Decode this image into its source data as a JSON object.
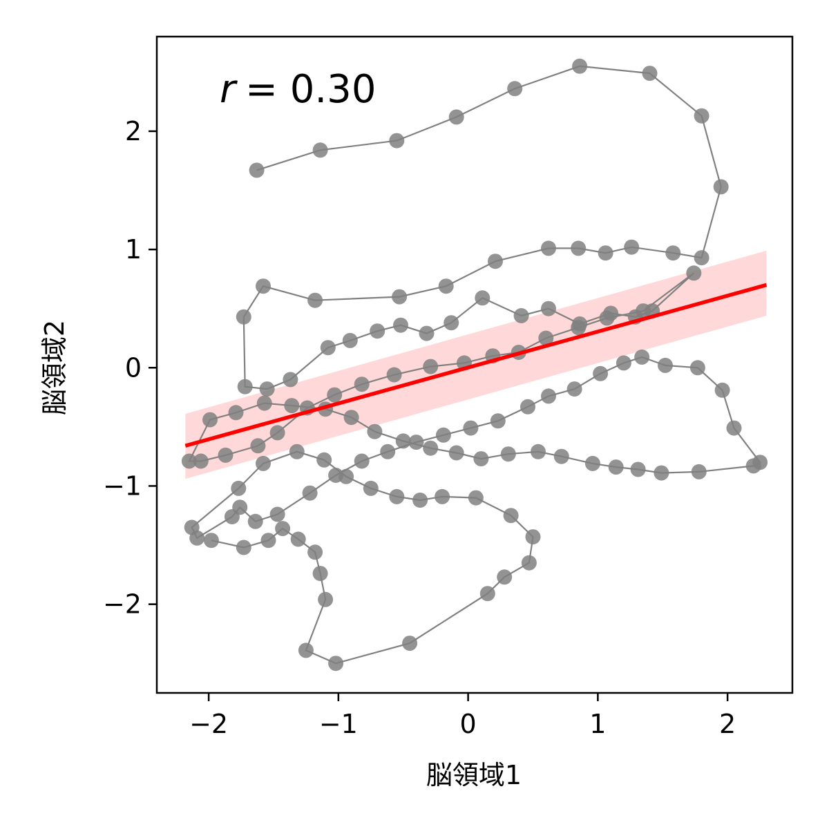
{
  "chart_data": {
    "type": "scatter",
    "xlabel": "脳領域1",
    "ylabel": "脳領域2",
    "xlim": [
      -2.4,
      2.5
    ],
    "ylim": [
      -2.75,
      2.8
    ],
    "xticks": [
      -2,
      -1,
      0,
      1,
      2
    ],
    "yticks": [
      -2,
      -1,
      0,
      1,
      2
    ],
    "grid": false,
    "annotation": {
      "symbol": "r",
      "value": "= 0.30"
    },
    "colors": {
      "points": "#808080",
      "path": "#808080",
      "fit": "#ff0000",
      "band": "#ffcccc"
    },
    "series": [
      {
        "style": "markers-connected",
        "points": [
          [
            -1.63,
            1.67
          ],
          [
            -1.14,
            1.84
          ],
          [
            -0.55,
            1.92
          ],
          [
            -0.09,
            2.12
          ],
          [
            0.36,
            2.36
          ],
          [
            0.86,
            2.55
          ],
          [
            1.4,
            2.49
          ],
          [
            1.8,
            2.13
          ],
          [
            1.95,
            1.53
          ],
          [
            1.8,
            0.93
          ],
          [
            1.58,
            0.97
          ],
          [
            1.26,
            1.02
          ],
          [
            1.06,
            0.97
          ],
          [
            0.85,
            1.01
          ],
          [
            0.62,
            1.01
          ],
          [
            0.21,
            0.9
          ],
          [
            -0.17,
            0.69
          ],
          [
            -0.53,
            0.6
          ],
          [
            -1.18,
            0.57
          ],
          [
            -1.58,
            0.69
          ],
          [
            -1.73,
            0.43
          ],
          [
            -1.72,
            -0.16
          ],
          [
            -1.55,
            -0.18
          ],
          [
            -1.37,
            -0.1
          ],
          [
            -1.08,
            0.17
          ],
          [
            -0.91,
            0.23
          ],
          [
            -0.7,
            0.31
          ],
          [
            -0.52,
            0.36
          ],
          [
            -0.32,
            0.29
          ],
          [
            -0.13,
            0.38
          ],
          [
            0.11,
            0.59
          ],
          [
            0.41,
            0.44
          ],
          [
            0.62,
            0.5
          ],
          [
            0.86,
            0.37
          ],
          [
            1.1,
            0.46
          ],
          [
            1.29,
            0.43
          ],
          [
            1.42,
            0.48
          ],
          [
            1.74,
            0.8
          ],
          [
            1.35,
            0.48
          ],
          [
            1.07,
            0.42
          ],
          [
            0.85,
            0.34
          ],
          [
            0.6,
            0.25
          ],
          [
            0.39,
            0.13
          ],
          [
            0.19,
            0.1
          ],
          [
            -0.03,
            0.04
          ],
          [
            -0.29,
            0.01
          ],
          [
            -0.57,
            -0.06
          ],
          [
            -0.82,
            -0.14
          ],
          [
            -1.03,
            -0.23
          ],
          [
            -1.24,
            -0.34
          ],
          [
            -1.47,
            -0.55
          ],
          [
            -1.62,
            -0.66
          ],
          [
            -1.87,
            -0.74
          ],
          [
            -2.06,
            -0.79
          ],
          [
            -2.15,
            -0.79
          ],
          [
            -1.99,
            -0.44
          ],
          [
            -1.79,
            -0.38
          ],
          [
            -1.57,
            -0.3
          ],
          [
            -1.36,
            -0.32
          ],
          [
            -1.1,
            -0.35
          ],
          [
            -0.9,
            -0.42
          ],
          [
            -0.72,
            -0.54
          ],
          [
            -0.5,
            -0.62
          ],
          [
            -0.29,
            -0.68
          ],
          [
            -0.09,
            -0.72
          ],
          [
            0.1,
            -0.77
          ],
          [
            0.31,
            -0.73
          ],
          [
            0.54,
            -0.71
          ],
          [
            0.72,
            -0.75
          ],
          [
            0.96,
            -0.81
          ],
          [
            1.14,
            -0.84
          ],
          [
            1.31,
            -0.86
          ],
          [
            1.49,
            -0.89
          ],
          [
            1.78,
            -0.88
          ],
          [
            2.2,
            -0.83
          ],
          [
            2.25,
            -0.8
          ],
          [
            2.05,
            -0.51
          ],
          [
            1.96,
            -0.19
          ],
          [
            1.77,
            0.0
          ],
          [
            1.52,
            0.02
          ],
          [
            1.34,
            0.09
          ],
          [
            1.2,
            0.04
          ],
          [
            1.02,
            -0.05
          ],
          [
            0.82,
            -0.18
          ],
          [
            0.62,
            -0.24
          ],
          [
            0.46,
            -0.33
          ],
          [
            0.23,
            -0.45
          ],
          [
            0.02,
            -0.51
          ],
          [
            -0.19,
            -0.57
          ],
          [
            -0.4,
            -0.63
          ],
          [
            -0.62,
            -0.71
          ],
          [
            -0.82,
            -0.79
          ],
          [
            -1.02,
            -0.91
          ],
          [
            -1.22,
            -1.06
          ],
          [
            -1.47,
            -1.24
          ],
          [
            -1.64,
            -1.3
          ],
          [
            -1.76,
            -1.18
          ],
          [
            -1.82,
            -1.26
          ],
          [
            -2.09,
            -1.44
          ],
          [
            -2.13,
            -1.35
          ],
          [
            -1.77,
            -1.02
          ],
          [
            -1.58,
            -0.81
          ],
          [
            -1.32,
            -0.71
          ],
          [
            -1.11,
            -0.78
          ],
          [
            -0.94,
            -0.92
          ],
          [
            -0.75,
            -1.02
          ],
          [
            -0.55,
            -1.09
          ],
          [
            -0.37,
            -1.12
          ],
          [
            -0.2,
            -1.09
          ],
          [
            0.06,
            -1.1
          ],
          [
            0.33,
            -1.25
          ],
          [
            0.5,
            -1.43
          ],
          [
            0.47,
            -1.65
          ],
          [
            0.28,
            -1.77
          ],
          [
            0.15,
            -1.91
          ],
          [
            -0.45,
            -2.33
          ],
          [
            -1.02,
            -2.5
          ],
          [
            -1.25,
            -2.39
          ],
          [
            -1.1,
            -1.96
          ],
          [
            -1.14,
            -1.74
          ],
          [
            -1.18,
            -1.56
          ],
          [
            -1.31,
            -1.45
          ],
          [
            -1.43,
            -1.36
          ],
          [
            -1.54,
            -1.46
          ],
          [
            -1.73,
            -1.52
          ],
          [
            -1.98,
            -1.46
          ]
        ]
      }
    ],
    "fit": {
      "x": [
        -2.18,
        2.3
      ],
      "y": [
        -0.66,
        0.7
      ],
      "band_lower": [
        -0.94,
        0.44
      ],
      "band_upper": [
        -0.39,
        0.99
      ]
    }
  }
}
